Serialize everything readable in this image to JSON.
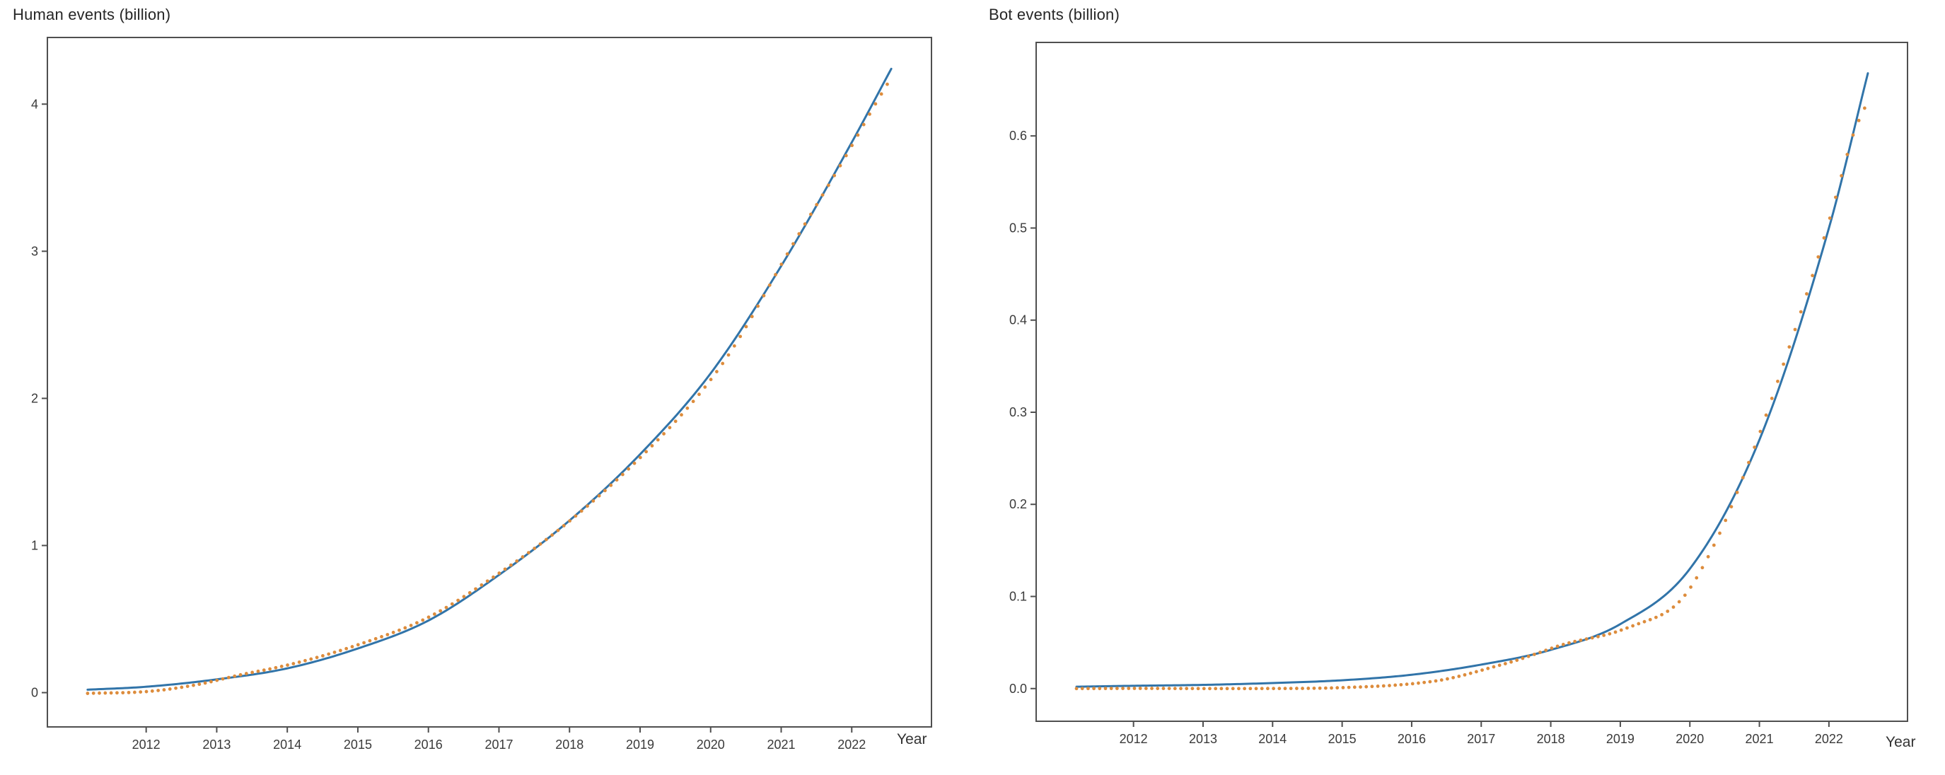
{
  "page": {
    "background": "#ffffff"
  },
  "chart_data": [
    {
      "type": "line",
      "title": "Human events (billion)",
      "xlabel": "Year",
      "ylabel": "",
      "grid": false,
      "legend_position": "none",
      "xlim": [
        2010.6,
        2023.13
      ],
      "ylim": [
        -0.233,
        4.453
      ],
      "x_tick_values": [
        2012,
        2013,
        2014,
        2015,
        2016,
        2017,
        2018,
        2019,
        2020,
        2021,
        2022
      ],
      "x_tick_labels": [
        "2012",
        "2013",
        "2014",
        "2015",
        "2016",
        "2017",
        "2018",
        "2019",
        "2020",
        "2021",
        "2022"
      ],
      "y_tick_values": [
        0,
        1,
        2,
        3,
        4
      ],
      "y_tick_labels": [
        "0",
        "1",
        "2",
        "3",
        "4"
      ],
      "axis_color": "#4f4f4f",
      "tick_label_color": "#3a3a3a",
      "series": [
        {
          "name": "fitted-curve",
          "type": "line",
          "color": "#3174a9",
          "line_width": 3,
          "x": [
            2011.17,
            2012,
            2013,
            2014,
            2015,
            2016,
            2017,
            2018,
            2019,
            2020,
            2021,
            2022,
            2022.56
          ],
          "y": [
            0.02,
            0.04,
            0.09,
            0.165,
            0.3,
            0.49,
            0.8,
            1.17,
            1.62,
            2.17,
            2.9,
            3.74,
            4.24
          ]
        },
        {
          "name": "observed-monthly-points",
          "type": "dots",
          "color": "#dd8c3c",
          "dot_radius": 2.4,
          "x_start": 2011.17,
          "x_end": 2022.56,
          "x_step": 0.0833333,
          "base_series": "fitted-curve",
          "offset_x": [
            2011.17,
            2012,
            2012.7,
            2013.5,
            2015,
            2016.5,
            2017.5,
            2018.5,
            2019.5,
            2020.2,
            2021.2,
            2021.9,
            2022.3,
            2022.56
          ],
          "offset_y": [
            -0.025,
            -0.033,
            -0.02,
            0.015,
            0.025,
            0.018,
            0.003,
            -0.012,
            -0.035,
            -0.045,
            0.015,
            -0.02,
            -0.035,
            -0.06
          ]
        }
      ]
    },
    {
      "type": "line",
      "title": "Bot events (billion)",
      "xlabel": "Year",
      "ylabel": "",
      "grid": false,
      "legend_position": "none",
      "xlim": [
        2010.6,
        2023.13
      ],
      "ylim": [
        -0.0355,
        0.7015
      ],
      "x_tick_values": [
        2012,
        2013,
        2014,
        2015,
        2016,
        2017,
        2018,
        2019,
        2020,
        2021,
        2022
      ],
      "x_tick_labels": [
        "2012",
        "2013",
        "2014",
        "2015",
        "2016",
        "2017",
        "2018",
        "2019",
        "2020",
        "2021",
        "2022"
      ],
      "y_tick_values": [
        0.0,
        0.1,
        0.2,
        0.3,
        0.4,
        0.5,
        0.6
      ],
      "y_tick_labels": [
        "0.0",
        "0.1",
        "0.2",
        "0.3",
        "0.4",
        "0.5",
        "0.6"
      ],
      "axis_color": "#4f4f4f",
      "tick_label_color": "#3a3a3a",
      "series": [
        {
          "name": "fitted-curve",
          "type": "line",
          "color": "#3174a9",
          "line_width": 3,
          "x": [
            2011.18,
            2012,
            2013,
            2014,
            2015,
            2016,
            2017,
            2018,
            2019,
            2020,
            2021,
            2022,
            2022.56
          ],
          "y": [
            0.002,
            0.003,
            0.004,
            0.006,
            0.009,
            0.015,
            0.026,
            0.042,
            0.07,
            0.13,
            0.27,
            0.5,
            0.668
          ]
        },
        {
          "name": "observed-monthly-points",
          "type": "dots",
          "color": "#dd8c3c",
          "dot_radius": 2.4,
          "x_start": 2011.18,
          "x_end": 2022.56,
          "x_step": 0.0833333,
          "base_series": "fitted-curve",
          "offset_x": [
            2011.18,
            2013,
            2015,
            2016.3,
            2017.3,
            2018.2,
            2019.2,
            2019.9,
            2020.4,
            2020.9,
            2021.4,
            2021.9,
            2022.3,
            2022.56
          ],
          "offset_y": [
            -0.002,
            -0.004,
            -0.008,
            -0.01,
            -0.004,
            0.002,
            -0.01,
            -0.022,
            -0.012,
            0.004,
            0.012,
            0.008,
            0.002,
            -0.03
          ]
        }
      ]
    }
  ]
}
